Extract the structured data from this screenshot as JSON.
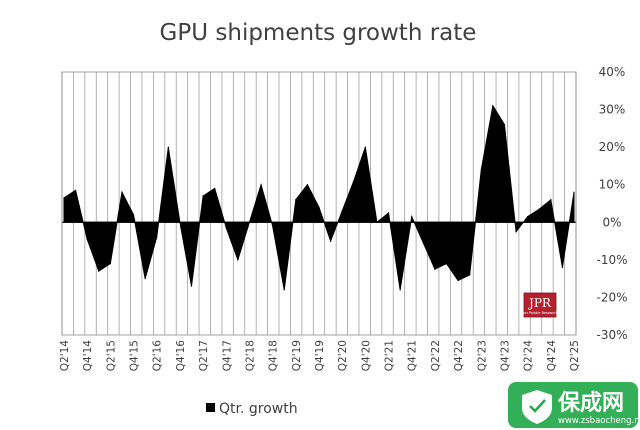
{
  "chart_data": {
    "type": "area",
    "title": "GPU shipments growth rate",
    "xlabel": "",
    "ylabel": "",
    "ylim": [
      -30,
      40
    ],
    "ytick_values": [
      -30,
      -20,
      -10,
      0,
      10,
      20,
      30,
      40
    ],
    "ytick_labels": [
      "-30%",
      "-20%",
      "-10%",
      "0%",
      "10%",
      "20%",
      "30%",
      "40%"
    ],
    "grid": "vertical",
    "legend_position": "bottom-left",
    "tick_labels": [
      "Q2'14",
      "Q4'14",
      "Q2'15",
      "Q4'15",
      "Q2'16",
      "Q4'16",
      "Q2'17",
      "Q4'17",
      "Q2'18",
      "Q4'18",
      "Q2'19",
      "Q4'19",
      "Q2'20",
      "Q4'20",
      "Q2'21",
      "Q4'21",
      "Q2'22",
      "Q4'22",
      "Q2'23",
      "Q4'23",
      "Q2'24",
      "Q4'24",
      "Q2'25"
    ],
    "categories": [
      "Q2'14",
      "Q3'14",
      "Q4'14",
      "Q1'15",
      "Q2'15",
      "Q3'15",
      "Q4'15",
      "Q1'16",
      "Q2'16",
      "Q3'16",
      "Q4'16",
      "Q1'17",
      "Q2'17",
      "Q3'17",
      "Q4'17",
      "Q1'18",
      "Q2'18",
      "Q3'18",
      "Q4'18",
      "Q1'19",
      "Q2'19",
      "Q3'19",
      "Q4'19",
      "Q1'20",
      "Q2'20",
      "Q3'20",
      "Q4'20",
      "Q1'21",
      "Q2'21",
      "Q3'21",
      "Q4'21",
      "Q1'22",
      "Q2'22",
      "Q3'22",
      "Q4'22",
      "Q1'23",
      "Q2'23",
      "Q3'23",
      "Q4'23",
      "Q1'24",
      "Q2'24",
      "Q3'24",
      "Q4'24",
      "Q1'25",
      "Q2'25"
    ],
    "series": [
      {
        "name": "Qtr. growth",
        "values": [
          6.5,
          8.5,
          -4.5,
          -13,
          -11,
          8,
          2,
          -15,
          -4,
          20,
          0,
          -17,
          7,
          9,
          -1.5,
          -10,
          0,
          10,
          -1,
          -18,
          6,
          10,
          4,
          -5,
          3,
          11,
          20,
          0,
          2.5,
          -18,
          1.5,
          -5.5,
          -12.5,
          -11,
          -15.5,
          -14,
          14,
          31,
          26,
          -2.5,
          1.5,
          3.5,
          6,
          -12,
          8
        ]
      }
    ]
  },
  "logo": {
    "text": "JPR",
    "sub": "Jon Peddie Research"
  },
  "watermark": {
    "name": "保成网",
    "url": "www.zsbaocheng.net"
  },
  "colors": {
    "series": "#000000",
    "grid": "#a0a0a0",
    "text": "#404040",
    "logo_bg": "#b5202e",
    "watermark_bg": "#22a84a"
  }
}
